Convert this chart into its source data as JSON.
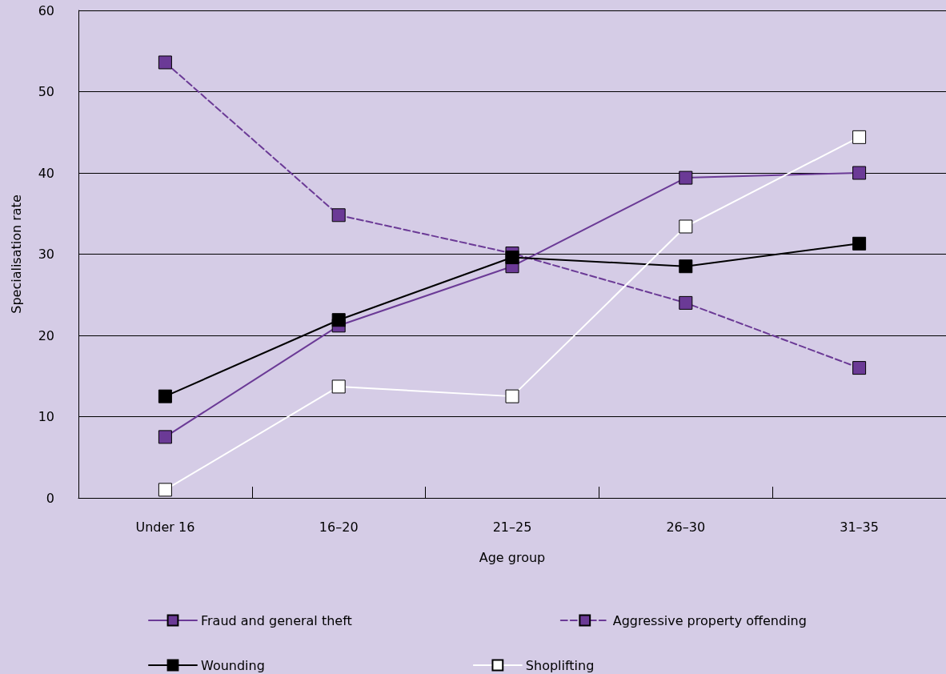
{
  "chart_data": {
    "type": "line",
    "xlabel": "Age group",
    "ylabel": "Specialisation rate",
    "categories": [
      "Under 16",
      "16–20",
      "21–25",
      "26–30",
      "31–35"
    ],
    "series": [
      {
        "name": "Fraud and general theft",
        "color": "#6b3a96",
        "values": [
          7.5,
          21.2,
          28.5,
          39.4,
          40.0
        ]
      },
      {
        "name": "Aggressive property offending",
        "color": "#6b3a96",
        "line_style": "dashed",
        "values": [
          53.6,
          34.8,
          30.1,
          24.0,
          16.0
        ]
      },
      {
        "name": "Wounding",
        "color": "#000000",
        "values": [
          12.5,
          21.9,
          29.6,
          28.5,
          31.3
        ]
      },
      {
        "name": "Shoplifting",
        "color": "#ffffff",
        "values": [
          1.0,
          13.7,
          12.5,
          33.4,
          44.4
        ]
      }
    ],
    "ylim": [
      0,
      60
    ],
    "yticks": [
      0,
      10,
      20,
      30,
      40,
      50,
      60
    ],
    "grid": "y",
    "legend": "bottom",
    "marker": "square",
    "line_style": "solid"
  }
}
